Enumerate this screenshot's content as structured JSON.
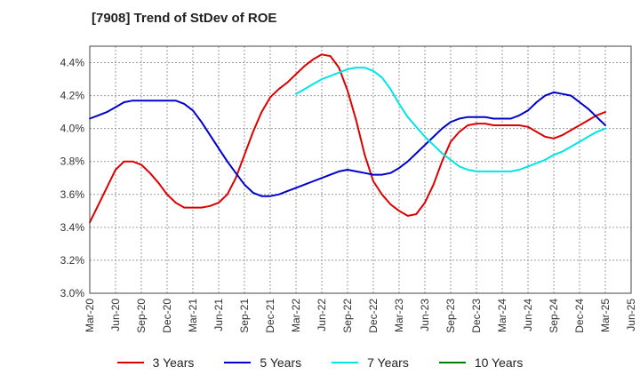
{
  "chart_data": {
    "type": "line",
    "title": "[7908]  Trend of StDev of ROE",
    "x_ticks": [
      "Mar-20",
      "Jun-20",
      "Sep-20",
      "Dec-20",
      "Mar-21",
      "Jun-21",
      "Sep-21",
      "Dec-21",
      "Mar-22",
      "Jun-22",
      "Sep-22",
      "Dec-22",
      "Mar-23",
      "Jun-23",
      "Sep-23",
      "Dec-23",
      "Mar-24",
      "Jun-24",
      "Sep-24",
      "Dec-24",
      "Mar-25",
      "Jun-25"
    ],
    "y_ticks": [
      "3.0%",
      "3.2%",
      "3.4%",
      "3.6%",
      "3.8%",
      "4.0%",
      "4.2%",
      "4.4%"
    ],
    "ylim": [
      3.0,
      4.5
    ],
    "grid": true,
    "legend_position": "bottom",
    "series": [
      {
        "name": "3 Years",
        "color": "#dd0000",
        "x": [
          "Mar-20",
          "Jun-20",
          "Jul-20",
          "Aug-20",
          "Sep-20",
          "Oct-20",
          "Nov-20",
          "Dec-20",
          "Jan-21",
          "Feb-21",
          "Mar-21",
          "Apr-21",
          "May-21",
          "Jun-21",
          "Jul-21",
          "Aug-21",
          "Sep-21",
          "Oct-21",
          "Nov-21",
          "Dec-21",
          "Jan-22",
          "Feb-22",
          "Mar-22",
          "Apr-22",
          "May-22",
          "Jun-22",
          "Jul-22",
          "Aug-22",
          "Sep-22",
          "Oct-22",
          "Nov-22",
          "Dec-22",
          "Jan-23",
          "Feb-23",
          "Mar-23",
          "Apr-23",
          "May-23",
          "Jun-23",
          "Jul-23",
          "Aug-23",
          "Sep-23",
          "Oct-23",
          "Nov-23",
          "Dec-23",
          "Jan-24",
          "Feb-24",
          "Mar-24",
          "Apr-24",
          "May-24",
          "Jun-24",
          "Jul-24",
          "Aug-24",
          "Sep-24",
          "Oct-24",
          "Nov-24",
          "Dec-24",
          "Jan-25",
          "Feb-25",
          "Mar-25"
        ],
        "values": [
          3.43,
          3.75,
          3.8,
          3.8,
          3.78,
          3.73,
          3.67,
          3.6,
          3.55,
          3.52,
          3.52,
          3.52,
          3.53,
          3.55,
          3.6,
          3.7,
          3.84,
          3.98,
          4.1,
          4.19,
          4.24,
          4.28,
          4.33,
          4.38,
          4.42,
          4.45,
          4.44,
          4.37,
          4.23,
          4.05,
          3.84,
          3.68,
          3.6,
          3.54,
          3.5,
          3.47,
          3.48,
          3.55,
          3.66,
          3.8,
          3.92,
          3.98,
          4.02,
          4.03,
          4.03,
          4.02,
          4.02,
          4.02,
          4.02,
          4.01,
          3.98,
          3.95,
          3.94,
          3.96,
          3.99,
          4.02,
          4.05,
          4.08,
          4.1
        ]
      },
      {
        "name": "5 Years",
        "color": "#0000cc",
        "x": [
          "Mar-20",
          "Apr-20",
          "May-20",
          "Jun-20",
          "Jul-20",
          "Aug-20",
          "Sep-20",
          "Oct-20",
          "Nov-20",
          "Dec-20",
          "Jan-21",
          "Feb-21",
          "Mar-21",
          "Apr-21",
          "May-21",
          "Jun-21",
          "Jul-21",
          "Aug-21",
          "Sep-21",
          "Oct-21",
          "Nov-21",
          "Dec-21",
          "Jan-22",
          "Feb-22",
          "Mar-22",
          "Apr-22",
          "May-22",
          "Jun-22",
          "Jul-22",
          "Aug-22",
          "Sep-22",
          "Oct-22",
          "Nov-22",
          "Dec-22",
          "Jan-23",
          "Feb-23",
          "Mar-23",
          "Apr-23",
          "May-23",
          "Jun-23",
          "Jul-23",
          "Aug-23",
          "Sep-23",
          "Oct-23",
          "Nov-23",
          "Dec-23",
          "Jan-24",
          "Feb-24",
          "Mar-24",
          "Apr-24",
          "May-24",
          "Jun-24",
          "Jul-24",
          "Aug-24",
          "Sep-24",
          "Oct-24",
          "Nov-24",
          "Dec-24",
          "Jan-25",
          "Feb-25",
          "Mar-25"
        ],
        "values": [
          4.06,
          4.08,
          4.1,
          4.13,
          4.16,
          4.17,
          4.17,
          4.17,
          4.17,
          4.17,
          4.17,
          4.15,
          4.11,
          4.04,
          3.96,
          3.88,
          3.8,
          3.73,
          3.66,
          3.61,
          3.59,
          3.59,
          3.6,
          3.62,
          3.64,
          3.66,
          3.68,
          3.7,
          3.72,
          3.74,
          3.75,
          3.74,
          3.73,
          3.72,
          3.72,
          3.73,
          3.76,
          3.8,
          3.85,
          3.9,
          3.95,
          4.0,
          4.04,
          4.06,
          4.07,
          4.07,
          4.07,
          4.06,
          4.06,
          4.06,
          4.08,
          4.11,
          4.16,
          4.2,
          4.22,
          4.21,
          4.2,
          4.16,
          4.12,
          4.07,
          4.02
        ]
      },
      {
        "name": "7 Years",
        "color": "#00e5e5",
        "x": [
          "Mar-22",
          "Apr-22",
          "May-22",
          "Jun-22",
          "Jul-22",
          "Aug-22",
          "Sep-22",
          "Oct-22",
          "Nov-22",
          "Dec-22",
          "Jan-23",
          "Feb-23",
          "Mar-23",
          "Apr-23",
          "May-23",
          "Jun-23",
          "Jul-23",
          "Aug-23",
          "Sep-23",
          "Oct-23",
          "Nov-23",
          "Dec-23",
          "Jan-24",
          "Feb-24",
          "Mar-24",
          "Apr-24",
          "May-24",
          "Jun-24",
          "Jul-24",
          "Aug-24",
          "Sep-24",
          "Oct-24",
          "Nov-24",
          "Dec-24",
          "Jan-25",
          "Feb-25",
          "Mar-25"
        ],
        "values": [
          4.21,
          4.24,
          4.27,
          4.3,
          4.32,
          4.34,
          4.36,
          4.37,
          4.37,
          4.35,
          4.31,
          4.24,
          4.15,
          4.07,
          4.01,
          3.95,
          3.9,
          3.85,
          3.81,
          3.77,
          3.75,
          3.74,
          3.74,
          3.74,
          3.74,
          3.74,
          3.75,
          3.77,
          3.79,
          3.81,
          3.84,
          3.86,
          3.89,
          3.92,
          3.95,
          3.98,
          4.0
        ]
      },
      {
        "name": "10 Years",
        "color": "#008000",
        "x": [],
        "values": []
      }
    ]
  }
}
